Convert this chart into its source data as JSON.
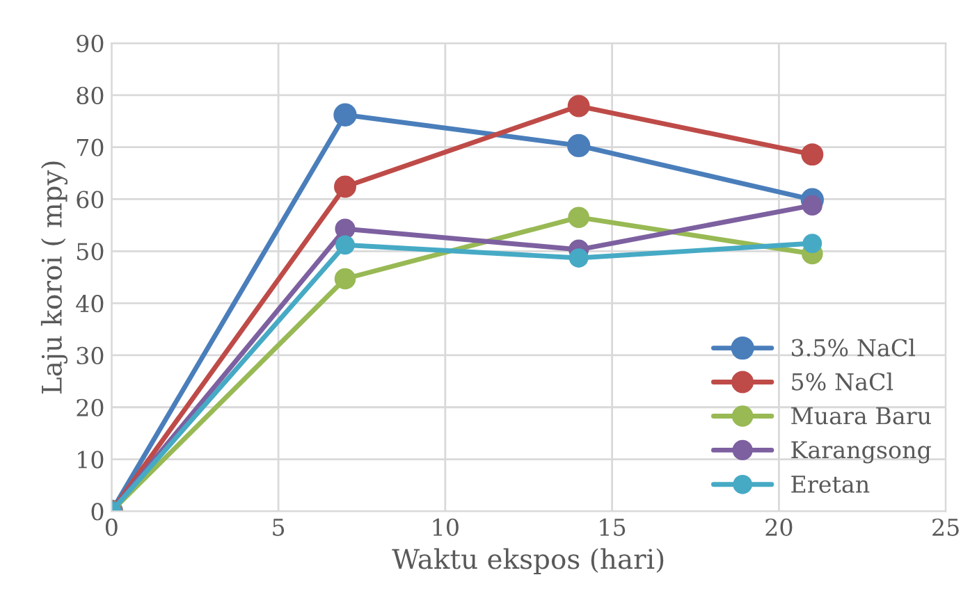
{
  "chart_data": {
    "type": "line",
    "xlabel": "Waktu ekspos (hari)",
    "ylabel": "Laju koroi ( mpy)",
    "x": [
      0,
      7,
      14,
      21
    ],
    "series": [
      {
        "name": "3.5% NaCl",
        "color": "#4a7ebb",
        "values": [
          0,
          76.2,
          70.3,
          59.9
        ]
      },
      {
        "name": "5% NaCl",
        "color": "#be4b48",
        "values": [
          0,
          62.4,
          77.9,
          68.6
        ]
      },
      {
        "name": "Muara Baru",
        "color": "#98b954",
        "values": [
          0,
          44.7,
          56.5,
          49.5
        ]
      },
      {
        "name": "Karangsong",
        "color": "#7d60a0",
        "values": [
          0,
          54.3,
          50.3,
          58.8
        ]
      },
      {
        "name": "Eretan",
        "color": "#46aac5",
        "values": [
          0,
          51.2,
          48.7,
          51.5
        ]
      }
    ],
    "xlim": [
      0,
      25
    ],
    "xticks": [
      0,
      5,
      10,
      15,
      20,
      25
    ],
    "ylim": [
      0,
      90
    ],
    "yticks": [
      0,
      10,
      20,
      30,
      40,
      50,
      60,
      70,
      80,
      90
    ],
    "grid": true,
    "legend": "bottom right",
    "marker": "circle",
    "line_style": "solid"
  }
}
